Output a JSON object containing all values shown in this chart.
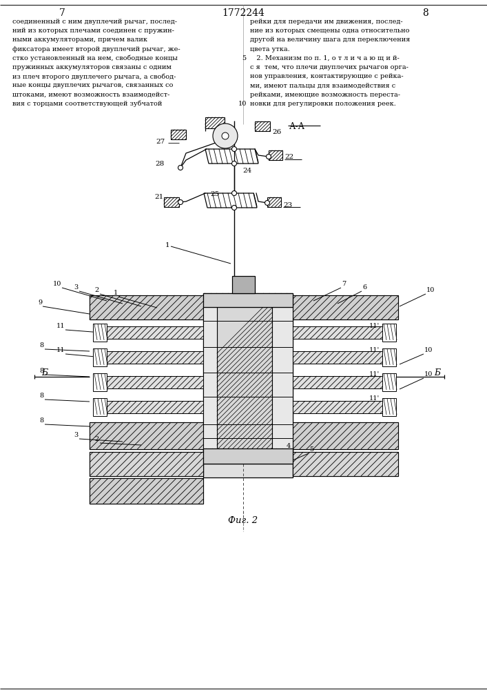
{
  "page_left": "7",
  "page_right": "8",
  "patent_number": "1772244",
  "fig_top_label": "А-А",
  "fig_bottom_label": "Фиг. 2",
  "bg_color": "#ffffff",
  "text_color": "#000000",
  "left_text_lines": [
    "соединенный с ним двуплечий рычаг, послед-",
    "ний из которых плечами соединен с пружин-",
    "ными аккумуляторами, причем валик",
    "фиксатора имеет второй двуплечий рычаг, же-",
    "стко установленный на нем, свободные концы",
    "пружинных аккумуляторов связаны с одним",
    "из плеч второго двуплечего рычага, а свобод-",
    "ные концы двуплечих рычагов, связанных со",
    "штоками, имеют возможность взаимодейст-",
    "вия с торцами соответствующей зубчатой"
  ],
  "right_text_lines": [
    "рейки для передачи им движения, послед-",
    "ние из которых смещены одна относительно",
    "другой на величину шага для переключения",
    "цвета утка.",
    "   2. Механизм по п. 1, о т л и ч а ю щ и й-",
    "с я  тем, что плечи двуплечих рычагов орга-",
    "нов управления, контактирующие с рейка-",
    "ми, имеют пальцы для взаимодействия с",
    "рейками, имеющие возможность переста-",
    "новки для регулировки положения реек."
  ],
  "line_numbers": {
    "5": 4,
    "10": 9
  }
}
